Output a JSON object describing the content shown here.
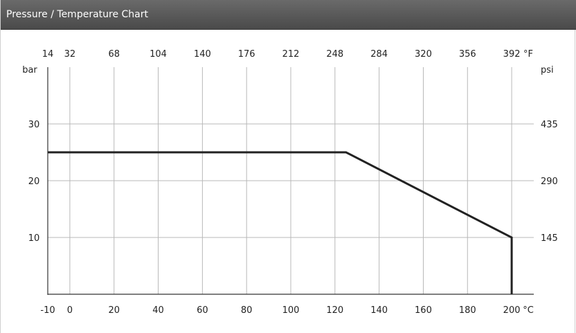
{
  "header": {
    "title": "Pressure / Temperature Chart"
  },
  "chart_data": {
    "type": "line",
    "title": "Pressure / Temperature Chart",
    "x_axis": {
      "label": "°C",
      "range": [
        -10,
        210
      ],
      "ticks": [
        -10,
        0,
        20,
        40,
        60,
        80,
        100,
        120,
        140,
        160,
        180,
        200
      ]
    },
    "x2_axis": {
      "label": "°F",
      "range": [
        14,
        410
      ],
      "ticks": [
        14,
        32,
        68,
        104,
        140,
        176,
        212,
        248,
        284,
        320,
        356,
        392
      ]
    },
    "y_axis": {
      "label": "bar",
      "range": [
        0,
        40
      ],
      "ticks": [
        10,
        20,
        30
      ]
    },
    "y2_axis": {
      "label": "psi",
      "ticks": [
        145,
        290,
        435
      ]
    },
    "grid": true,
    "series": [
      {
        "color": "#222222",
        "points": [
          [
            -10,
            25
          ],
          [
            125,
            25
          ],
          [
            200,
            10
          ],
          [
            200,
            0
          ]
        ]
      }
    ]
  }
}
